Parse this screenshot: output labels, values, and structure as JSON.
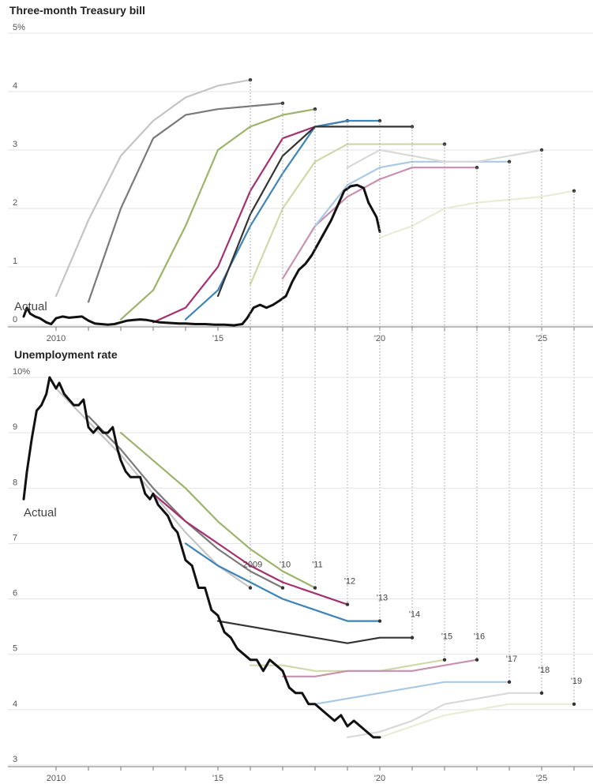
{
  "chart_data": [
    {
      "type": "line",
      "title": "Three-month Treasury bill",
      "xlabel": "",
      "ylabel": "",
      "y_tick_labels": [
        "0",
        "1",
        "2",
        "3",
        "4",
        "5%"
      ],
      "x_tick_labels": [
        "2010",
        "'15",
        "'20",
        "'25"
      ],
      "ylim": [
        0,
        5
      ],
      "xlim": [
        2009.0,
        2026.0
      ],
      "grid": true,
      "annotation": "Actual",
      "actual": {
        "color": "#111111",
        "x": [
          2009.0,
          2009.1,
          2009.2,
          2009.35,
          2009.5,
          2009.7,
          2009.85,
          2010.0,
          2010.2,
          2010.4,
          2010.6,
          2010.8,
          2011.0,
          2011.2,
          2011.4,
          2011.6,
          2011.8,
          2012.0,
          2012.2,
          2012.4,
          2012.6,
          2012.8,
          2013.0,
          2013.2,
          2013.5,
          2013.8,
          2014.0,
          2014.3,
          2014.6,
          2014.9,
          2015.2,
          2015.5,
          2015.75,
          2015.9,
          2016.1,
          2016.3,
          2016.5,
          2016.7,
          2016.9,
          2017.1,
          2017.3,
          2017.5,
          2017.7,
          2017.9,
          2018.1,
          2018.3,
          2018.5,
          2018.7,
          2018.9,
          2019.1,
          2019.3,
          2019.5,
          2019.65,
          2019.8,
          2019.9,
          2020.0
        ],
        "y": [
          0.15,
          0.3,
          0.2,
          0.15,
          0.12,
          0.05,
          0.02,
          0.12,
          0.15,
          0.13,
          0.14,
          0.15,
          0.08,
          0.03,
          0.02,
          0.01,
          0.02,
          0.05,
          0.08,
          0.09,
          0.1,
          0.09,
          0.07,
          0.05,
          0.04,
          0.03,
          0.03,
          0.02,
          0.02,
          0.01,
          0.01,
          0.0,
          0.02,
          0.12,
          0.3,
          0.35,
          0.3,
          0.35,
          0.42,
          0.5,
          0.75,
          0.95,
          1.05,
          1.2,
          1.4,
          1.6,
          1.8,
          2.05,
          2.3,
          2.38,
          2.4,
          2.35,
          2.1,
          1.95,
          1.85,
          1.6
        ]
      },
      "series": [
        {
          "year": "2009",
          "color": "#c4c4c4",
          "x": [
            2010.0,
            2011.0,
            2012.0,
            2013.0,
            2014.0,
            2015.0,
            2016.0
          ],
          "y": [
            0.5,
            1.8,
            2.9,
            3.5,
            3.9,
            4.1,
            4.2
          ]
        },
        {
          "year": "2010",
          "color": "#7a7a7a",
          "x": [
            2011.0,
            2012.0,
            2013.0,
            2014.0,
            2015.0,
            2016.0,
            2017.0
          ],
          "y": [
            0.4,
            2.0,
            3.2,
            3.6,
            3.7,
            3.75,
            3.8
          ]
        },
        {
          "year": "2011",
          "color": "#9bb36a",
          "x": [
            2012.0,
            2013.0,
            2014.0,
            2015.0,
            2016.0,
            2017.0,
            2018.0
          ],
          "y": [
            0.1,
            0.6,
            1.7,
            3.0,
            3.4,
            3.6,
            3.7
          ]
        },
        {
          "year": "2012",
          "color": "#a5306f",
          "x": [
            2013.0,
            2014.0,
            2015.0,
            2016.0,
            2017.0,
            2018.0,
            2019.0
          ],
          "y": [
            0.05,
            0.3,
            1.0,
            2.3,
            3.2,
            3.4,
            3.5
          ]
        },
        {
          "year": "2013",
          "color": "#3d85b8",
          "x": [
            2014.0,
            2015.0,
            2016.0,
            2017.0,
            2018.0,
            2019.0,
            2020.0
          ],
          "y": [
            0.1,
            0.6,
            1.7,
            2.6,
            3.4,
            3.5,
            3.5
          ]
        },
        {
          "year": "2014",
          "color": "#333333",
          "x": [
            2015.0,
            2016.0,
            2017.0,
            2018.0,
            2019.0,
            2020.0,
            2021.0
          ],
          "y": [
            0.5,
            1.9,
            2.9,
            3.4,
            3.4,
            3.4,
            3.4
          ]
        },
        {
          "year": "2015",
          "color": "#cfd9a8",
          "x": [
            2016.0,
            2017.0,
            2018.0,
            2019.0,
            2020.0,
            2021.0,
            2022.0
          ],
          "y": [
            0.7,
            2.0,
            2.8,
            3.1,
            3.1,
            3.1,
            3.1
          ]
        },
        {
          "year": "2016",
          "color": "#c98fb0",
          "x": [
            2017.0,
            2018.0,
            2019.0,
            2020.0,
            2021.0,
            2022.0,
            2023.0
          ],
          "y": [
            0.8,
            1.7,
            2.2,
            2.5,
            2.7,
            2.7,
            2.7
          ]
        },
        {
          "year": "2017",
          "color": "#a9c9e4",
          "x": [
            2018.0,
            2019.0,
            2020.0,
            2021.0,
            2022.0,
            2023.0,
            2024.0
          ],
          "y": [
            1.7,
            2.4,
            2.7,
            2.8,
            2.8,
            2.8,
            2.8
          ]
        },
        {
          "year": "2018",
          "color": "#d9d9d9",
          "x": [
            2019.0,
            2020.0,
            2021.0,
            2022.0,
            2023.0,
            2024.0,
            2025.0
          ],
          "y": [
            2.7,
            3.0,
            2.9,
            2.8,
            2.8,
            2.9,
            3.0
          ]
        },
        {
          "year": "2019",
          "color": "#ebecd5",
          "x": [
            2020.0,
            2021.0,
            2022.0,
            2023.0,
            2024.0,
            2025.0,
            2026.0
          ],
          "y": [
            1.5,
            1.7,
            2.0,
            2.1,
            2.15,
            2.2,
            2.3
          ]
        }
      ]
    },
    {
      "type": "line",
      "title": "Unemployment rate",
      "xlabel": "",
      "ylabel": "",
      "y_tick_labels": [
        "3",
        "4",
        "5",
        "6",
        "7",
        "8",
        "9",
        "10%"
      ],
      "x_tick_labels": [
        "2010",
        "'15",
        "'20",
        "'25"
      ],
      "ylim": [
        3,
        10
      ],
      "xlim": [
        2009.0,
        2026.0
      ],
      "grid": true,
      "annotation": "Actual",
      "vintage_labels": [
        "2009",
        "'10",
        "'11",
        "'12",
        "'13",
        "'14",
        "'15",
        "'16",
        "'17",
        "'18",
        "'19"
      ],
      "actual": {
        "color": "#111111",
        "x": [
          2009.0,
          2009.1,
          2009.25,
          2009.4,
          2009.55,
          2009.7,
          2009.8,
          2009.9,
          2010.0,
          2010.1,
          2010.25,
          2010.4,
          2010.55,
          2010.7,
          2010.85,
          2011.0,
          2011.15,
          2011.3,
          2011.45,
          2011.6,
          2011.75,
          2011.9,
          2012.0,
          2012.15,
          2012.3,
          2012.45,
          2012.6,
          2012.75,
          2012.9,
          2013.0,
          2013.15,
          2013.3,
          2013.45,
          2013.6,
          2013.75,
          2013.9,
          2014.0,
          2014.2,
          2014.4,
          2014.6,
          2014.8,
          2015.0,
          2015.2,
          2015.4,
          2015.6,
          2015.8,
          2016.0,
          2016.2,
          2016.4,
          2016.6,
          2016.8,
          2017.0,
          2017.2,
          2017.4,
          2017.6,
          2017.8,
          2018.0,
          2018.2,
          2018.4,
          2018.6,
          2018.8,
          2019.0,
          2019.2,
          2019.4,
          2019.6,
          2019.8,
          2020.0
        ],
        "y": [
          7.8,
          8.3,
          8.9,
          9.4,
          9.5,
          9.7,
          10.0,
          9.9,
          9.8,
          9.9,
          9.7,
          9.6,
          9.5,
          9.5,
          9.6,
          9.1,
          9.0,
          9.1,
          9.0,
          9.0,
          9.1,
          8.7,
          8.5,
          8.3,
          8.2,
          8.2,
          8.2,
          7.9,
          7.8,
          7.9,
          7.7,
          7.6,
          7.5,
          7.3,
          7.2,
          6.9,
          6.7,
          6.6,
          6.2,
          6.2,
          5.8,
          5.7,
          5.4,
          5.3,
          5.1,
          5.0,
          4.9,
          4.9,
          4.7,
          4.9,
          4.8,
          4.7,
          4.4,
          4.3,
          4.3,
          4.1,
          4.1,
          4.0,
          3.9,
          3.8,
          3.9,
          3.7,
          3.8,
          3.7,
          3.6,
          3.5,
          3.5
        ]
      },
      "series": [
        {
          "year": "2009",
          "color": "#c4c4c4",
          "x": [
            2010.0,
            2011.0,
            2012.0,
            2013.0,
            2014.0,
            2015.0,
            2016.0
          ],
          "y": [
            9.8,
            9.2,
            8.6,
            7.9,
            7.2,
            6.6,
            6.2
          ]
        },
        {
          "year": "'10",
          "color": "#7a7a7a",
          "x": [
            2011.0,
            2012.0,
            2013.0,
            2014.0,
            2015.0,
            2016.0,
            2017.0
          ],
          "y": [
            9.3,
            8.7,
            8.0,
            7.4,
            6.9,
            6.5,
            6.2
          ]
        },
        {
          "year": "'11",
          "color": "#9bb36a",
          "x": [
            2012.0,
            2013.0,
            2014.0,
            2015.0,
            2016.0,
            2017.0,
            2018.0
          ],
          "y": [
            9.0,
            8.5,
            8.0,
            7.4,
            6.9,
            6.5,
            6.2
          ]
        },
        {
          "year": "'12",
          "color": "#a5306f",
          "x": [
            2013.0,
            2014.0,
            2015.0,
            2016.0,
            2017.0,
            2018.0,
            2019.0
          ],
          "y": [
            7.9,
            7.4,
            7.0,
            6.6,
            6.3,
            6.1,
            5.9
          ]
        },
        {
          "year": "'13",
          "color": "#3d85b8",
          "x": [
            2014.0,
            2015.0,
            2016.0,
            2017.0,
            2018.0,
            2019.0,
            2020.0
          ],
          "y": [
            7.0,
            6.6,
            6.3,
            6.0,
            5.8,
            5.6,
            5.6
          ]
        },
        {
          "year": "'14",
          "color": "#333333",
          "x": [
            2015.0,
            2016.0,
            2017.0,
            2018.0,
            2019.0,
            2020.0,
            2021.0
          ],
          "y": [
            5.6,
            5.5,
            5.4,
            5.3,
            5.2,
            5.3,
            5.3
          ]
        },
        {
          "year": "'15",
          "color": "#cfd9a8",
          "x": [
            2016.0,
            2017.0,
            2018.0,
            2019.0,
            2020.0,
            2021.0,
            2022.0
          ],
          "y": [
            4.8,
            4.8,
            4.7,
            4.7,
            4.7,
            4.8,
            4.9
          ]
        },
        {
          "year": "'16",
          "color": "#c98fb0",
          "x": [
            2017.0,
            2018.0,
            2019.0,
            2020.0,
            2021.0,
            2022.0,
            2023.0
          ],
          "y": [
            4.6,
            4.6,
            4.7,
            4.7,
            4.7,
            4.8,
            4.9
          ]
        },
        {
          "year": "'17",
          "color": "#a9c9e4",
          "x": [
            2018.0,
            2019.0,
            2020.0,
            2021.0,
            2022.0,
            2023.0,
            2024.0
          ],
          "y": [
            4.1,
            4.2,
            4.3,
            4.4,
            4.5,
            4.5,
            4.5
          ]
        },
        {
          "year": "'18",
          "color": "#d9d9d9",
          "x": [
            2019.0,
            2020.0,
            2021.0,
            2022.0,
            2023.0,
            2024.0,
            2025.0
          ],
          "y": [
            3.5,
            3.6,
            3.8,
            4.1,
            4.2,
            4.3,
            4.3
          ]
        },
        {
          "year": "'19",
          "color": "#ebecd5",
          "x": [
            2020.0,
            2021.0,
            2022.0,
            2023.0,
            2024.0,
            2025.0,
            2026.0
          ],
          "y": [
            3.5,
            3.7,
            3.9,
            4.0,
            4.1,
            4.1,
            4.1
          ]
        }
      ]
    }
  ]
}
